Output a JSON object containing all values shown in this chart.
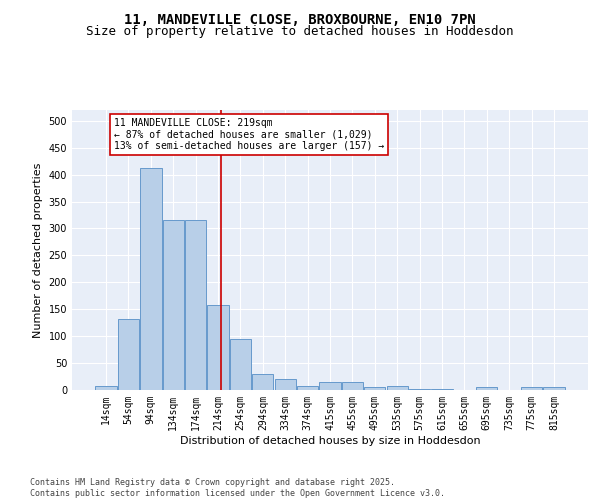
{
  "title1": "11, MANDEVILLE CLOSE, BROXBOURNE, EN10 7PN",
  "title2": "Size of property relative to detached houses in Hoddesdon",
  "xlabel": "Distribution of detached houses by size in Hoddesdon",
  "ylabel": "Number of detached properties",
  "categories": [
    "14sqm",
    "54sqm",
    "94sqm",
    "134sqm",
    "174sqm",
    "214sqm",
    "254sqm",
    "294sqm",
    "334sqm",
    "374sqm",
    "415sqm",
    "455sqm",
    "495sqm",
    "535sqm",
    "575sqm",
    "615sqm",
    "655sqm",
    "695sqm",
    "735sqm",
    "775sqm",
    "815sqm"
  ],
  "values": [
    7,
    132,
    412,
    315,
    315,
    158,
    95,
    30,
    20,
    8,
    14,
    14,
    6,
    7,
    2,
    1,
    0,
    5,
    0,
    5,
    5
  ],
  "bar_color": "#b8cfe8",
  "bar_edge_color": "#6699cc",
  "background_color": "#e8eef8",
  "gridcolor": "#ffffff",
  "vline_color": "#cc0000",
  "annotation_text": "11 MANDEVILLE CLOSE: 219sqm\n← 87% of detached houses are smaller (1,029)\n13% of semi-detached houses are larger (157) →",
  "annotation_box_color": "#ffffff",
  "annotation_box_edge": "#cc0000",
  "ylim": [
    0,
    520
  ],
  "yticks": [
    0,
    50,
    100,
    150,
    200,
    250,
    300,
    350,
    400,
    450,
    500
  ],
  "footer": "Contains HM Land Registry data © Crown copyright and database right 2025.\nContains public sector information licensed under the Open Government Licence v3.0.",
  "title_fontsize": 10,
  "subtitle_fontsize": 9,
  "axis_label_fontsize": 8,
  "tick_fontsize": 7,
  "annotation_fontsize": 7,
  "footer_fontsize": 6
}
